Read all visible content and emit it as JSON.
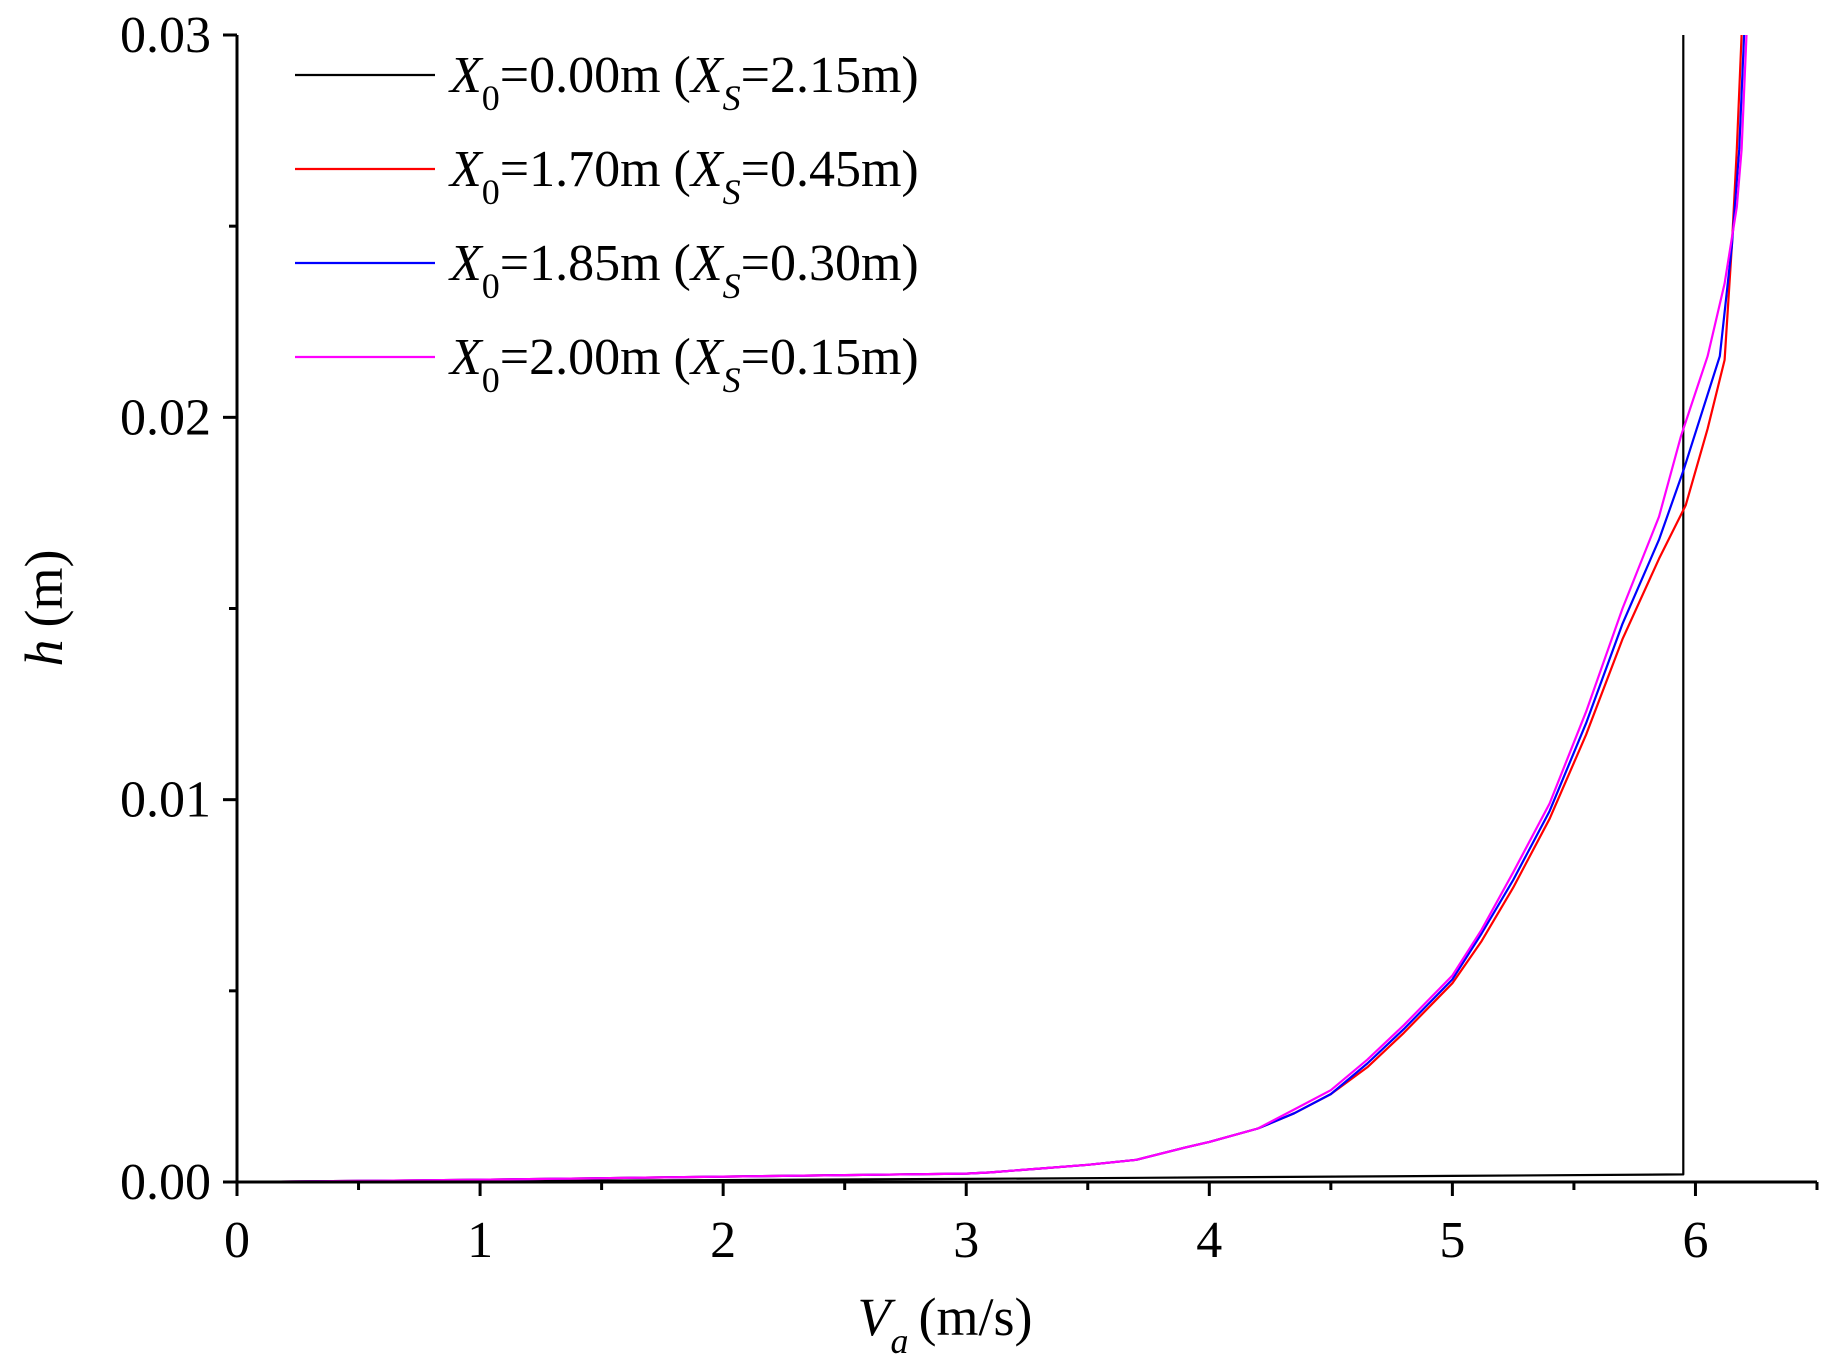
{
  "chart_data": {
    "type": "line",
    "xlabel": {
      "main": "V",
      "sub": "a",
      "unit": "(m/s)"
    },
    "ylabel": {
      "main": "h",
      "unit": "(m)"
    },
    "xlim": [
      0,
      6.5
    ],
    "ylim": [
      0,
      0.03
    ],
    "x_ticks": [
      0,
      1,
      2,
      3,
      4,
      5,
      6
    ],
    "x_tick_labels": [
      "0",
      "1",
      "2",
      "3",
      "4",
      "5",
      "6"
    ],
    "y_ticks": [
      0,
      0.01,
      0.02,
      0.03
    ],
    "y_tick_labels": [
      "0.00",
      "0.01",
      "0.02",
      "0.03"
    ],
    "grid": false,
    "legend_placement": "top-left",
    "series": [
      {
        "name": "X0=0.00m (XS=2.15m)",
        "legend": {
          "x0": "X",
          "x0_sub": "0",
          "x0_val": "=0.00m (",
          "xs": "X",
          "xs_sub": "S",
          "xs_val": "=2.15m)"
        },
        "color": "#000000",
        "points": [
          [
            0,
            0
          ],
          [
            1,
            2e-05
          ],
          [
            2,
            5e-05
          ],
          [
            3,
            8e-05
          ],
          [
            4,
            0.00012
          ],
          [
            5,
            0.00016
          ],
          [
            5.95,
            0.0002
          ],
          [
            5.95,
            0.03
          ]
        ]
      },
      {
        "name": "X0=1.70m (XS=0.45m)",
        "legend": {
          "x0": "X",
          "x0_sub": "0",
          "x0_val": "=1.70m (",
          "xs": "X",
          "xs_sub": "S",
          "xs_val": "=0.45m)"
        },
        "color": "#ff0000",
        "points": [
          [
            0,
            0
          ],
          [
            0.5,
            3e-05
          ],
          [
            1,
            6e-05
          ],
          [
            1.5,
            0.0001
          ],
          [
            2,
            0.00014
          ],
          [
            2.5,
            0.00018
          ],
          [
            3,
            0.00022
          ],
          [
            3.1,
            0.00025
          ],
          [
            3.3,
            0.00035
          ],
          [
            3.5,
            0.00045
          ],
          [
            3.7,
            0.00058
          ],
          [
            3.9,
            0.0009
          ],
          [
            4.0,
            0.00105
          ],
          [
            4.2,
            0.0014
          ],
          [
            4.35,
            0.0018
          ],
          [
            4.5,
            0.0023
          ],
          [
            4.65,
            0.003
          ],
          [
            4.8,
            0.0039
          ],
          [
            5.0,
            0.0052
          ],
          [
            5.12,
            0.0063
          ],
          [
            5.25,
            0.0077
          ],
          [
            5.4,
            0.0095
          ],
          [
            5.55,
            0.0117
          ],
          [
            5.7,
            0.0142
          ],
          [
            5.85,
            0.0163
          ],
          [
            5.96,
            0.0177
          ],
          [
            6.05,
            0.0197
          ],
          [
            6.12,
            0.0215
          ],
          [
            6.15,
            0.0245
          ],
          [
            6.17,
            0.027
          ],
          [
            6.19,
            0.03
          ]
        ]
      },
      {
        "name": "X0=1.85m (XS=0.30m)",
        "legend": {
          "x0": "X",
          "x0_sub": "0",
          "x0_val": "=1.85m (",
          "xs": "X",
          "xs_sub": "S",
          "xs_val": "=0.30m)"
        },
        "color": "#0000ff",
        "points": [
          [
            0,
            0
          ],
          [
            0.5,
            3e-05
          ],
          [
            1,
            6e-05
          ],
          [
            1.5,
            0.0001
          ],
          [
            2,
            0.00014
          ],
          [
            2.5,
            0.00018
          ],
          [
            3,
            0.00022
          ],
          [
            3.1,
            0.00025
          ],
          [
            3.3,
            0.00035
          ],
          [
            3.5,
            0.00045
          ],
          [
            3.7,
            0.00058
          ],
          [
            3.9,
            0.0009
          ],
          [
            4.0,
            0.00105
          ],
          [
            4.2,
            0.0014
          ],
          [
            4.35,
            0.0018
          ],
          [
            4.5,
            0.0023
          ],
          [
            4.65,
            0.0031
          ],
          [
            4.8,
            0.004
          ],
          [
            5.0,
            0.0053
          ],
          [
            5.12,
            0.0065
          ],
          [
            5.25,
            0.0079
          ],
          [
            5.4,
            0.0097
          ],
          [
            5.55,
            0.012
          ],
          [
            5.7,
            0.0146
          ],
          [
            5.85,
            0.0168
          ],
          [
            5.95,
            0.0186
          ],
          [
            6.03,
            0.0202
          ],
          [
            6.1,
            0.0216
          ],
          [
            6.15,
            0.0245
          ],
          [
            6.18,
            0.027
          ],
          [
            6.2,
            0.03
          ]
        ]
      },
      {
        "name": "X0=2.00m (XS=0.15m)",
        "legend": {
          "x0": "X",
          "x0_sub": "0",
          "x0_val": "=2.00m (",
          "xs": "X",
          "xs_sub": "S",
          "xs_val": "=0.15m)"
        },
        "color": "#ff00ff",
        "points": [
          [
            0,
            0
          ],
          [
            0.5,
            3e-05
          ],
          [
            1,
            6e-05
          ],
          [
            1.5,
            0.0001
          ],
          [
            2,
            0.00014
          ],
          [
            2.5,
            0.00018
          ],
          [
            3,
            0.00022
          ],
          [
            3.1,
            0.00025
          ],
          [
            3.3,
            0.00035
          ],
          [
            3.5,
            0.00045
          ],
          [
            3.7,
            0.00058
          ],
          [
            3.9,
            0.0009
          ],
          [
            4.0,
            0.00105
          ],
          [
            4.2,
            0.0014
          ],
          [
            4.35,
            0.0019
          ],
          [
            4.5,
            0.0024
          ],
          [
            4.65,
            0.0032
          ],
          [
            4.8,
            0.0041
          ],
          [
            5.0,
            0.0054
          ],
          [
            5.12,
            0.0066
          ],
          [
            5.25,
            0.0081
          ],
          [
            5.4,
            0.0099
          ],
          [
            5.55,
            0.0123
          ],
          [
            5.7,
            0.015
          ],
          [
            5.85,
            0.0174
          ],
          [
            5.94,
            0.0195
          ],
          [
            6.05,
            0.0216
          ],
          [
            6.12,
            0.0235
          ],
          [
            6.17,
            0.0255
          ],
          [
            6.19,
            0.027
          ],
          [
            6.21,
            0.03
          ]
        ]
      }
    ]
  }
}
